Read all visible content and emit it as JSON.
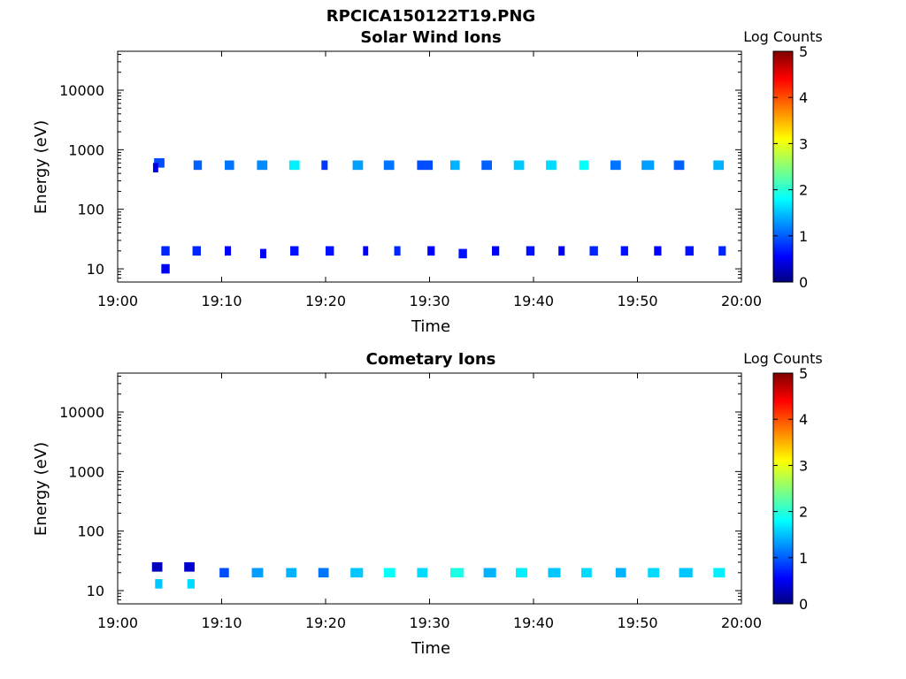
{
  "figure_title": "RPCICA150122T19.PNG",
  "chart_data": [
    {
      "type": "heatmap",
      "title": "Solar Wind Ions",
      "xlabel": "Time",
      "ylabel": "Energy (eV)",
      "x_ticks": [
        "19:00",
        "19:10",
        "19:20",
        "19:30",
        "19:40",
        "19:50",
        "20:00"
      ],
      "x_range_minutes": [
        0,
        60
      ],
      "y_scale": "log",
      "y_ticks": [
        {
          "label": "10",
          "value": 10
        },
        {
          "label": "100",
          "value": 100
        },
        {
          "label": "1000",
          "value": 1000
        },
        {
          "label": "10000",
          "value": 10000
        }
      ],
      "ylim": [
        6,
        45000
      ],
      "colorbar": {
        "label": "Log Counts",
        "ticks": [
          "0",
          "1",
          "2",
          "3",
          "4",
          "5"
        ],
        "range": [
          0,
          5
        ],
        "colormap": "jet"
      },
      "cells": [
        {
          "t": 3.5,
          "dt": 1.0,
          "e": 600,
          "c": 1.0
        },
        {
          "t": 3.4,
          "dt": 0.5,
          "e": 500,
          "c": 0.5
        },
        {
          "t": 4.2,
          "dt": 0.8,
          "e": 20,
          "c": 0.8
        },
        {
          "t": 4.2,
          "dt": 0.8,
          "e": 10,
          "c": 0.6
        },
        {
          "t": 7.3,
          "dt": 0.8,
          "e": 550,
          "c": 1.1
        },
        {
          "t": 7.2,
          "dt": 0.8,
          "e": 20,
          "c": 0.8
        },
        {
          "t": 10.3,
          "dt": 0.9,
          "e": 550,
          "c": 1.2
        },
        {
          "t": 10.3,
          "dt": 0.6,
          "e": 20,
          "c": 0.6
        },
        {
          "t": 13.4,
          "dt": 1.0,
          "e": 550,
          "c": 1.3
        },
        {
          "t": 13.7,
          "dt": 0.6,
          "e": 18,
          "c": 0.6
        },
        {
          "t": 16.5,
          "dt": 1.0,
          "e": 550,
          "c": 1.8
        },
        {
          "t": 16.6,
          "dt": 0.8,
          "e": 20,
          "c": 0.7
        },
        {
          "t": 19.6,
          "dt": 0.6,
          "e": 550,
          "c": 0.9
        },
        {
          "t": 20.0,
          "dt": 0.8,
          "e": 20,
          "c": 0.7
        },
        {
          "t": 22.6,
          "dt": 1.0,
          "e": 550,
          "c": 1.4
        },
        {
          "t": 23.6,
          "dt": 0.5,
          "e": 20,
          "c": 0.6
        },
        {
          "t": 25.6,
          "dt": 1.0,
          "e": 550,
          "c": 1.2
        },
        {
          "t": 26.6,
          "dt": 0.6,
          "e": 20,
          "c": 0.8
        },
        {
          "t": 28.8,
          "dt": 1.5,
          "e": 550,
          "c": 1.0
        },
        {
          "t": 29.8,
          "dt": 0.7,
          "e": 20,
          "c": 0.6
        },
        {
          "t": 32.0,
          "dt": 0.9,
          "e": 550,
          "c": 1.5
        },
        {
          "t": 32.8,
          "dt": 0.8,
          "e": 18,
          "c": 0.7
        },
        {
          "t": 35.0,
          "dt": 1.0,
          "e": 550,
          "c": 1.1
        },
        {
          "t": 36.0,
          "dt": 0.7,
          "e": 20,
          "c": 0.6
        },
        {
          "t": 38.1,
          "dt": 1.0,
          "e": 550,
          "c": 1.6
        },
        {
          "t": 39.3,
          "dt": 0.8,
          "e": 20,
          "c": 0.7
        },
        {
          "t": 41.2,
          "dt": 1.0,
          "e": 550,
          "c": 1.7
        },
        {
          "t": 42.4,
          "dt": 0.6,
          "e": 20,
          "c": 0.6
        },
        {
          "t": 44.4,
          "dt": 0.9,
          "e": 550,
          "c": 1.9
        },
        {
          "t": 45.4,
          "dt": 0.8,
          "e": 20,
          "c": 0.8
        },
        {
          "t": 47.4,
          "dt": 1.0,
          "e": 550,
          "c": 1.2
        },
        {
          "t": 48.4,
          "dt": 0.7,
          "e": 20,
          "c": 0.7
        },
        {
          "t": 50.4,
          "dt": 1.2,
          "e": 550,
          "c": 1.4
        },
        {
          "t": 51.6,
          "dt": 0.7,
          "e": 20,
          "c": 0.6
        },
        {
          "t": 53.5,
          "dt": 1.0,
          "e": 550,
          "c": 1.1
        },
        {
          "t": 54.6,
          "dt": 0.8,
          "e": 20,
          "c": 0.7
        },
        {
          "t": 57.3,
          "dt": 1.0,
          "e": 550,
          "c": 1.5
        },
        {
          "t": 57.8,
          "dt": 0.7,
          "e": 20,
          "c": 0.8
        }
      ]
    },
    {
      "type": "heatmap",
      "title": "Cometary Ions",
      "xlabel": "Time",
      "ylabel": "Energy (eV)",
      "x_ticks": [
        "19:00",
        "19:10",
        "19:20",
        "19:30",
        "19:40",
        "19:50",
        "20:00"
      ],
      "x_range_minutes": [
        0,
        60
      ],
      "y_scale": "log",
      "y_ticks": [
        {
          "label": "10",
          "value": 10
        },
        {
          "label": "100",
          "value": 100
        },
        {
          "label": "1000",
          "value": 1000
        },
        {
          "label": "10000",
          "value": 10000
        }
      ],
      "ylim": [
        6,
        45000
      ],
      "colorbar": {
        "label": "Log Counts",
        "ticks": [
          "0",
          "1",
          "2",
          "3",
          "4",
          "5"
        ],
        "range": [
          0,
          5
        ],
        "colormap": "jet"
      },
      "cells": [
        {
          "t": 3.3,
          "dt": 1.0,
          "e": 25,
          "c": 0.3
        },
        {
          "t": 3.6,
          "dt": 0.7,
          "e": 13,
          "c": 1.6
        },
        {
          "t": 6.4,
          "dt": 1.0,
          "e": 25,
          "c": 0.4
        },
        {
          "t": 6.7,
          "dt": 0.7,
          "e": 13,
          "c": 1.7
        },
        {
          "t": 9.8,
          "dt": 0.9,
          "e": 20,
          "c": 1.0
        },
        {
          "t": 12.9,
          "dt": 1.1,
          "e": 20,
          "c": 1.4
        },
        {
          "t": 16.2,
          "dt": 1.0,
          "e": 20,
          "c": 1.5
        },
        {
          "t": 19.3,
          "dt": 1.0,
          "e": 20,
          "c": 1.2
        },
        {
          "t": 22.4,
          "dt": 1.2,
          "e": 20,
          "c": 1.6
        },
        {
          "t": 25.6,
          "dt": 1.1,
          "e": 20,
          "c": 1.9
        },
        {
          "t": 28.8,
          "dt": 1.0,
          "e": 20,
          "c": 1.7
        },
        {
          "t": 32.0,
          "dt": 1.3,
          "e": 20,
          "c": 2.0
        },
        {
          "t": 35.2,
          "dt": 1.2,
          "e": 20,
          "c": 1.5
        },
        {
          "t": 38.3,
          "dt": 1.1,
          "e": 20,
          "c": 1.8
        },
        {
          "t": 41.4,
          "dt": 1.2,
          "e": 20,
          "c": 1.6
        },
        {
          "t": 44.6,
          "dt": 1.0,
          "e": 20,
          "c": 1.7
        },
        {
          "t": 47.9,
          "dt": 1.0,
          "e": 20,
          "c": 1.5
        },
        {
          "t": 51.0,
          "dt": 1.1,
          "e": 20,
          "c": 1.7
        },
        {
          "t": 54.0,
          "dt": 1.3,
          "e": 20,
          "c": 1.6
        },
        {
          "t": 57.3,
          "dt": 1.1,
          "e": 20,
          "c": 1.8
        }
      ]
    }
  ]
}
